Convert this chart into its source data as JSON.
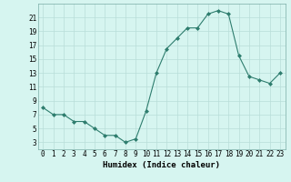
{
  "x": [
    0,
    1,
    2,
    3,
    4,
    5,
    6,
    7,
    8,
    9,
    10,
    11,
    12,
    13,
    14,
    15,
    16,
    17,
    18,
    19,
    20,
    21,
    22,
    23
  ],
  "y": [
    8,
    7,
    7,
    6,
    6,
    5,
    4,
    4,
    3,
    3.5,
    7.5,
    13,
    16.5,
    18,
    19.5,
    19.5,
    21.5,
    22,
    21.5,
    15.5,
    12.5,
    12,
    11.5,
    13
  ],
  "line_color": "#2e7d6e",
  "marker": "D",
  "marker_size": 2,
  "bg_color": "#d6f5f0",
  "grid_color": "#b8ddd8",
  "xlabel": "Humidex (Indice chaleur)",
  "xlim": [
    -0.5,
    23.5
  ],
  "ylim": [
    2,
    23
  ],
  "xticks": [
    0,
    1,
    2,
    3,
    4,
    5,
    6,
    7,
    8,
    9,
    10,
    11,
    12,
    13,
    14,
    15,
    16,
    17,
    18,
    19,
    20,
    21,
    22,
    23
  ],
  "yticks": [
    3,
    5,
    7,
    9,
    11,
    13,
    15,
    17,
    19,
    21
  ],
  "tick_fontsize": 5.5,
  "xlabel_fontsize": 6.5,
  "linewidth": 0.8
}
